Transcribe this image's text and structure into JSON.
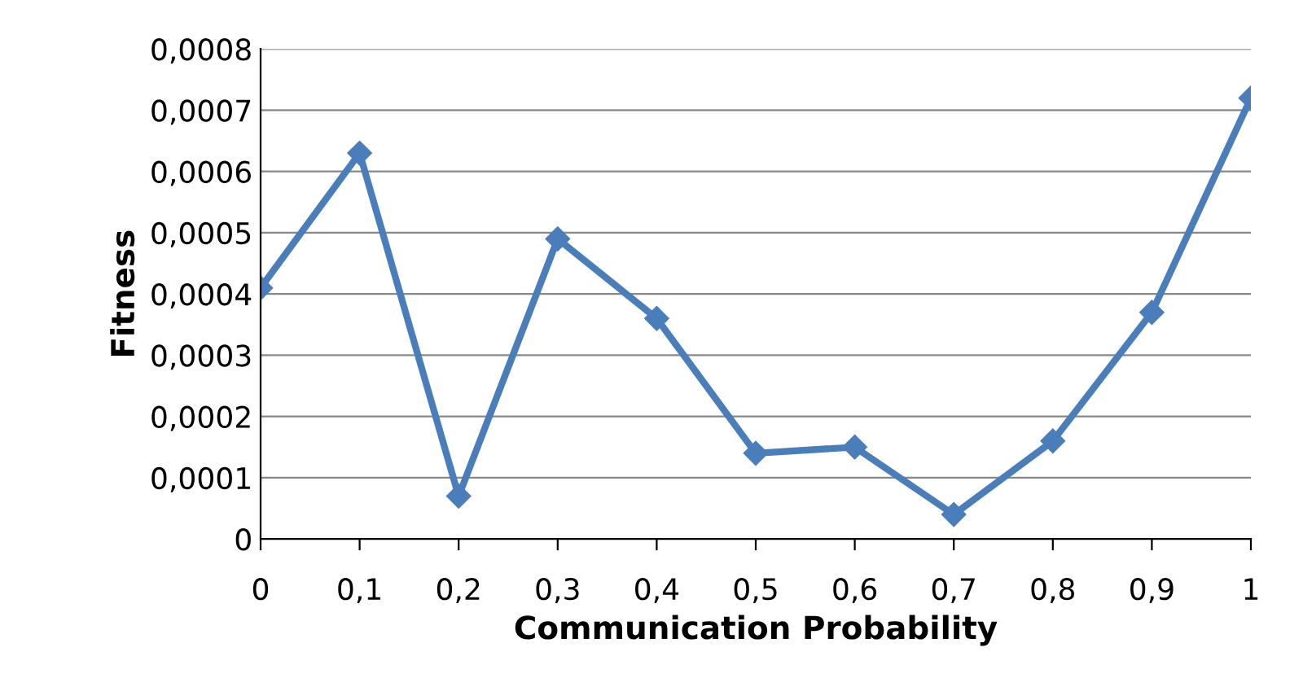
{
  "chart_data": {
    "type": "line",
    "xlabel": "Communication Probability",
    "ylabel": "Fitness",
    "categories": [
      "0",
      "0,1",
      "0,2",
      "0,3",
      "0,4",
      "0,5",
      "0,6",
      "0,7",
      "0,8",
      "0,9",
      "1"
    ],
    "series": [
      {
        "color": "#4a7ebb",
        "values": [
          0.00041,
          0.00063,
          7e-05,
          0.00049,
          0.00036,
          0.00014,
          0.00015,
          4e-05,
          0.00016,
          0.00037,
          0.00072
        ]
      }
    ],
    "ylim": [
      0,
      0.0008
    ],
    "yticks": [
      0,
      {
        "value": 0.0001,
        "label": "0,0001"
      },
      {
        "value": 0.0002,
        "label": "0,0002"
      },
      {
        "value": 0.0003,
        "label": "0,0003"
      },
      {
        "value": 0.0004,
        "label": "0,0004"
      },
      {
        "value": 0.0005,
        "label": "0,0005"
      },
      {
        "value": 0.0006,
        "label": "0,0006"
      },
      {
        "value": 0.0007,
        "label": "0,0007"
      },
      {
        "value": 0.0008,
        "label": "0,0008"
      }
    ],
    "grid": "y",
    "marker": "diamond",
    "line_style": "solid"
  }
}
